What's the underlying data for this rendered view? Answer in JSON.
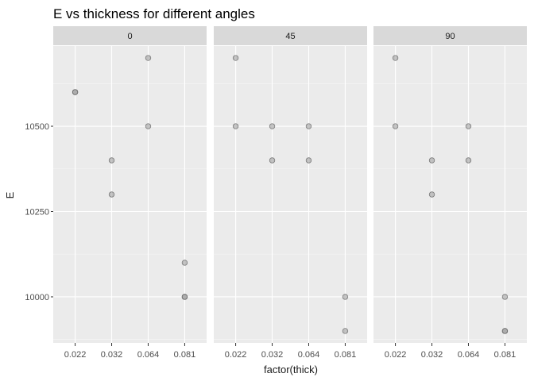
{
  "chart_data": {
    "type": "scatter",
    "title": "E vs thickness for different angles",
    "xlabel": "factor(thick)",
    "ylabel": "E",
    "categories": [
      "0.022",
      "0.032",
      "0.064",
      "0.081"
    ],
    "y_ticks": [
      10000,
      10250,
      10500
    ],
    "ylim": [
      9865,
      10735
    ],
    "grid": true,
    "facet_variable": "angle",
    "colors": {
      "panel_background": "#ebebeb",
      "strip_background": "#d9d9d9",
      "grid_major": "#ffffff",
      "grid_minor": "#f5f5f5",
      "point_fill": "#a0a0a0",
      "point_stroke": "#555555",
      "text": "#1a1a1a",
      "tick_text": "#4d4d4d"
    },
    "facets": [
      {
        "label": "0",
        "points": [
          {
            "x": "0.022",
            "y": 10600
          },
          {
            "x": "0.022",
            "y": 10600
          },
          {
            "x": "0.032",
            "y": 10400
          },
          {
            "x": "0.032",
            "y": 10300
          },
          {
            "x": "0.064",
            "y": 10700
          },
          {
            "x": "0.064",
            "y": 10500
          },
          {
            "x": "0.081",
            "y": 10100
          },
          {
            "x": "0.081",
            "y": 10000
          },
          {
            "x": "0.081",
            "y": 10000
          }
        ]
      },
      {
        "label": "45",
        "points": [
          {
            "x": "0.022",
            "y": 10700
          },
          {
            "x": "0.022",
            "y": 10500
          },
          {
            "x": "0.032",
            "y": 10500
          },
          {
            "x": "0.032",
            "y": 10400
          },
          {
            "x": "0.064",
            "y": 10500
          },
          {
            "x": "0.064",
            "y": 10400
          },
          {
            "x": "0.081",
            "y": 10000
          },
          {
            "x": "0.081",
            "y": 9900
          }
        ]
      },
      {
        "label": "90",
        "points": [
          {
            "x": "0.022",
            "y": 10700
          },
          {
            "x": "0.022",
            "y": 10500
          },
          {
            "x": "0.032",
            "y": 10400
          },
          {
            "x": "0.032",
            "y": 10300
          },
          {
            "x": "0.064",
            "y": 10500
          },
          {
            "x": "0.064",
            "y": 10400
          },
          {
            "x": "0.081",
            "y": 10000
          },
          {
            "x": "0.081",
            "y": 9900
          },
          {
            "x": "0.081",
            "y": 9900
          }
        ]
      }
    ]
  }
}
